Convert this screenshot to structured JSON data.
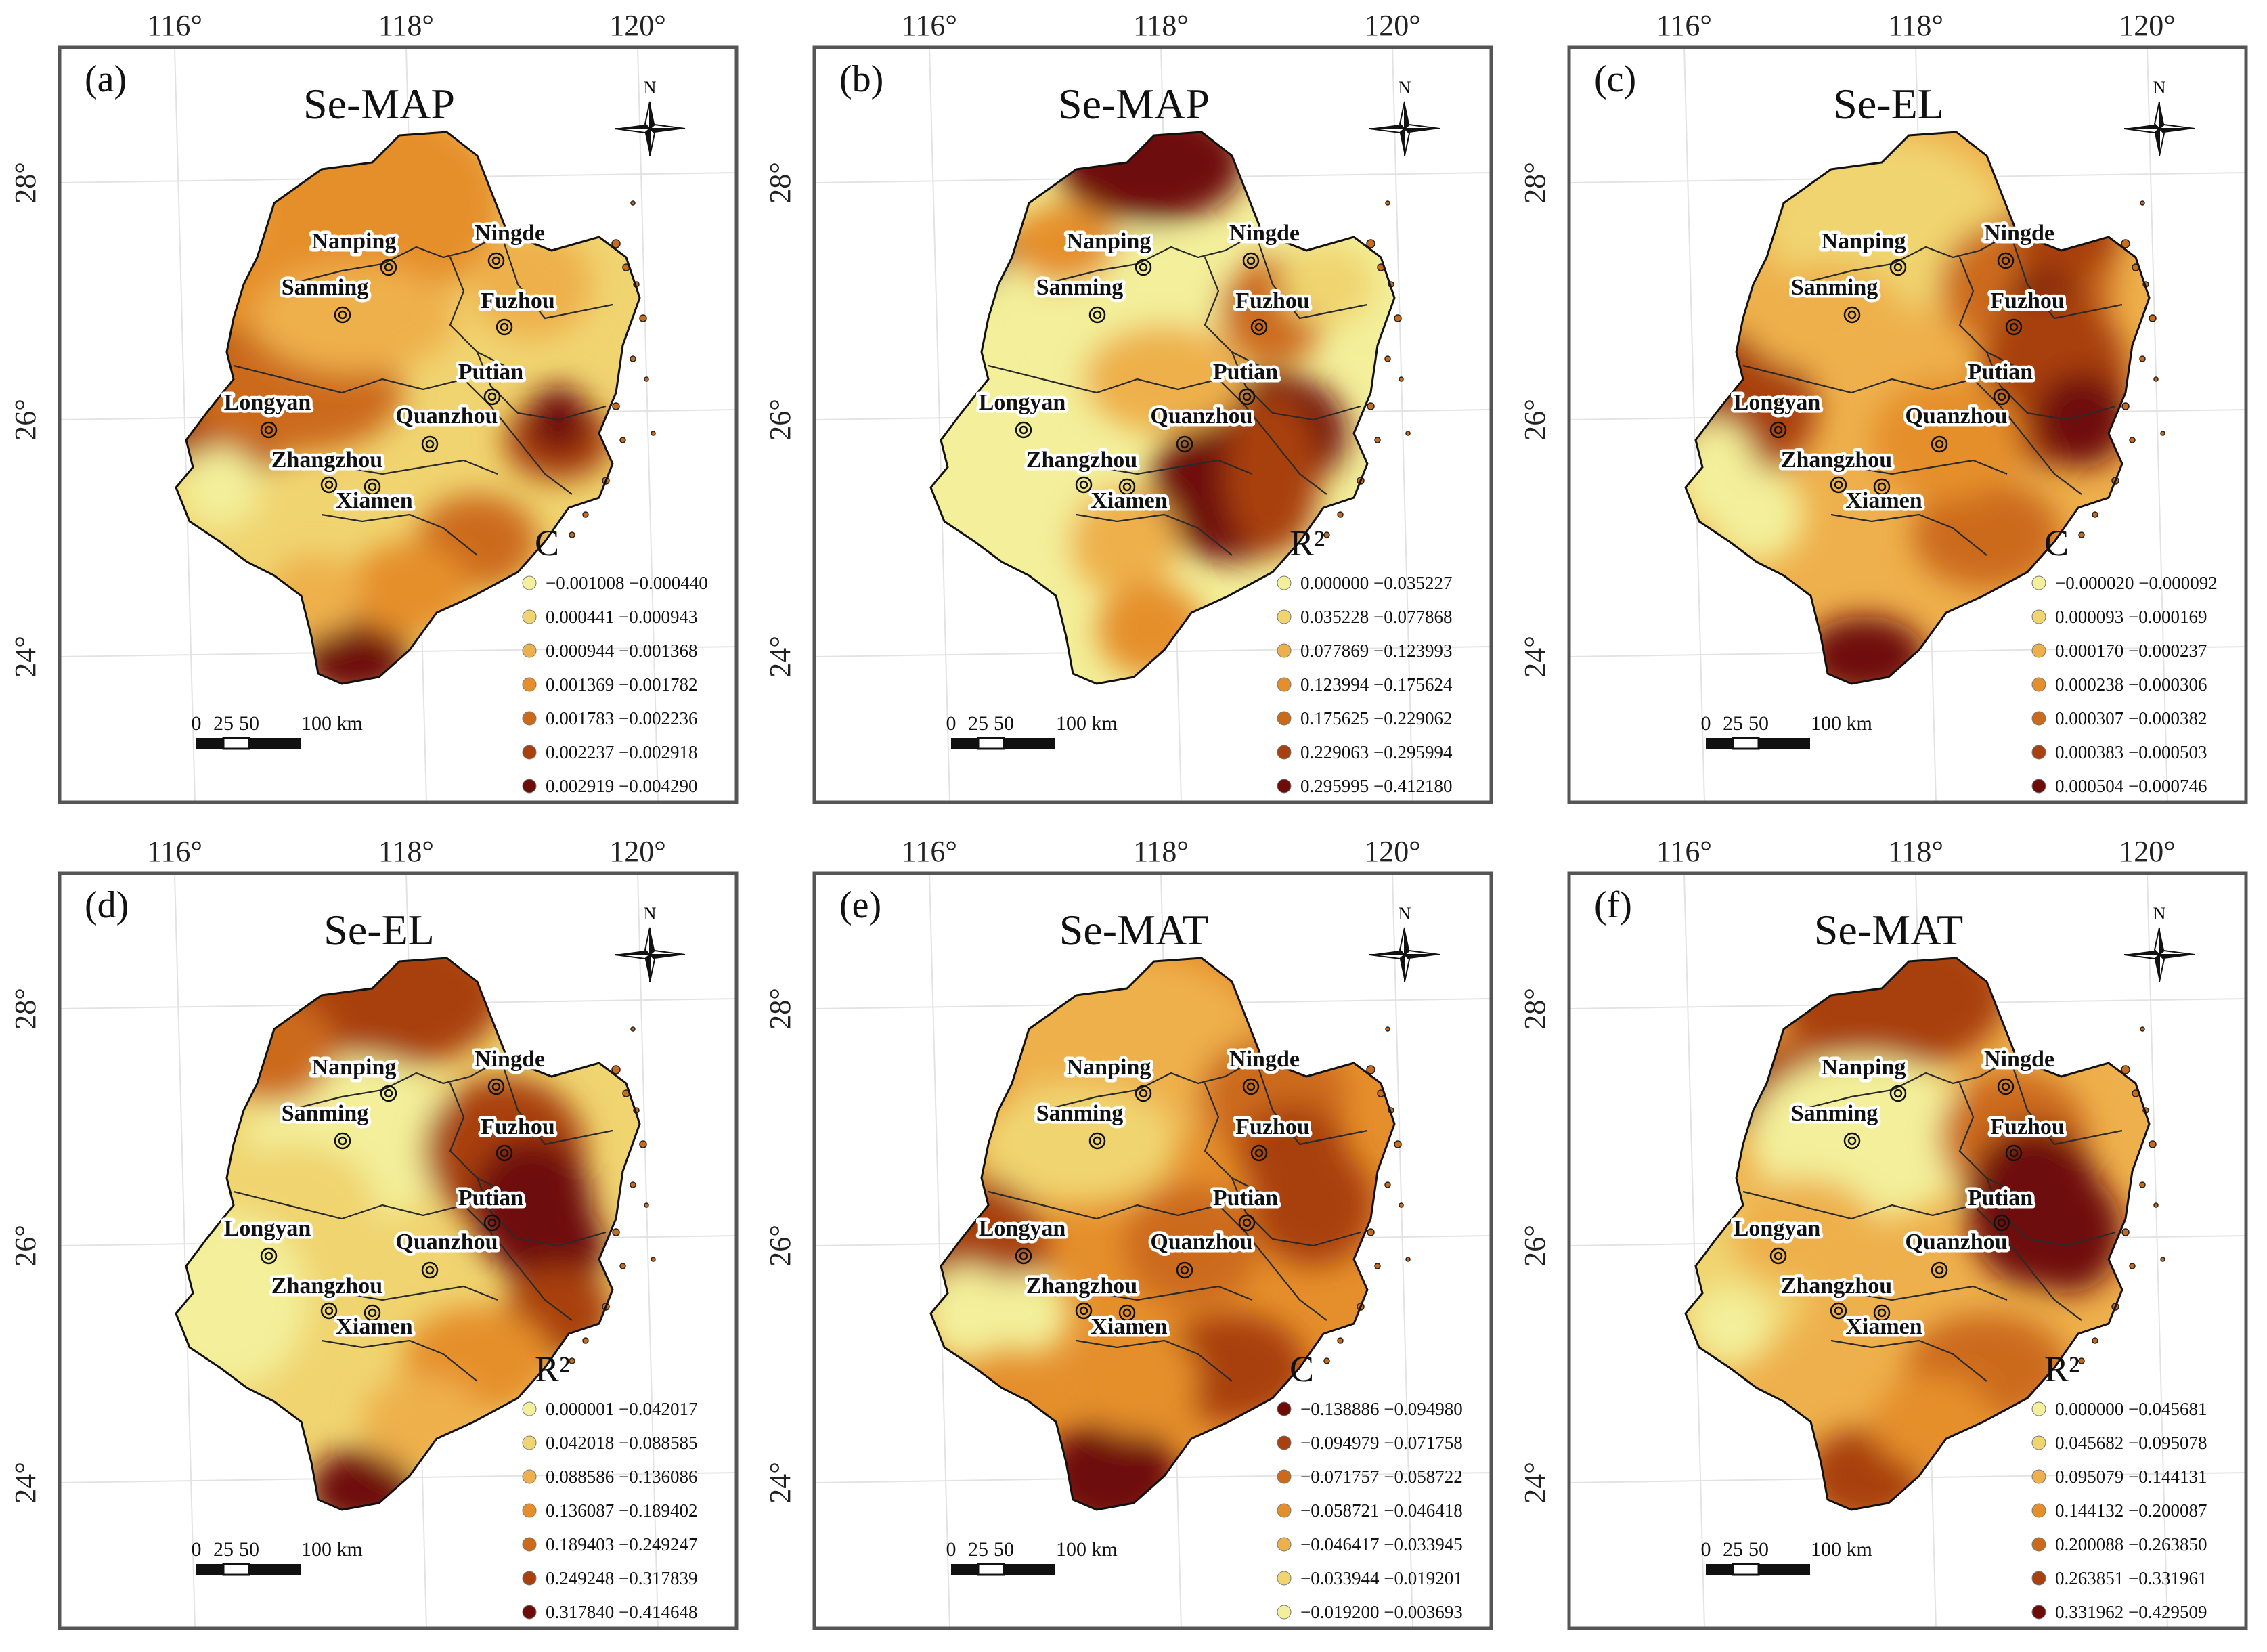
{
  "figure": {
    "lon_ticks": [
      "116°",
      "118°",
      "120°"
    ],
    "lat_ticks": [
      "28°",
      "26°",
      "24°"
    ],
    "north_label": "N",
    "scale": {
      "labels": [
        "0",
        "25",
        "50",
        "100 km"
      ]
    },
    "cities": [
      "Nanping",
      "Ningde",
      "Sanming",
      "Fuzhou",
      "Putian",
      "Longyan",
      "Quanzhou",
      "Zhangzhou",
      "Xiamen"
    ],
    "class_colors": [
      "#f3ef9a",
      "#f0d470",
      "#eeb04c",
      "#e58f2c",
      "#cc6a1c",
      "#a8400f",
      "#6e0d08"
    ]
  },
  "panels": [
    {
      "label": "(a)",
      "title": "Se-MAP",
      "legend_title": "C",
      "legend": [
        "−0.001008 −0.000440",
        "0.000441 −0.000943",
        "0.000944 −0.001368",
        "0.001369 −0.001782",
        "0.001783 −0.002236",
        "0.002237 −0.002918",
        "0.002919 −0.004290"
      ]
    },
    {
      "label": "(b)",
      "title": "Se-MAP",
      "legend_title": "R²",
      "legend": [
        "0.000000 −0.035227",
        "0.035228 −0.077868",
        "0.077869 −0.123993",
        "0.123994 −0.175624",
        "0.175625 −0.229062",
        "0.229063 −0.295994",
        "0.295995 −0.412180"
      ]
    },
    {
      "label": "(c)",
      "title": "Se-EL",
      "legend_title": "C",
      "legend": [
        "−0.000020 −0.000092",
        "0.000093 −0.000169",
        "0.000170 −0.000237",
        "0.000238 −0.000306",
        "0.000307 −0.000382",
        "0.000383 −0.000503",
        "0.000504 −0.000746"
      ]
    },
    {
      "label": "(d)",
      "title": "Se-EL",
      "legend_title": "R²",
      "legend": [
        "0.000001 −0.042017",
        "0.042018 −0.088585",
        "0.088586 −0.136086",
        "0.136087 −0.189402",
        "0.189403 −0.249247",
        "0.249248 −0.317839",
        "0.317840 −0.414648"
      ]
    },
    {
      "label": "(e)",
      "title": "Se-MAT",
      "legend_title": "C",
      "legend": [
        "−0.138886 −0.094980",
        "−0.094979 −0.071758",
        "−0.071757 −0.058722",
        "−0.058721 −0.046418",
        "−0.046417 −0.033945",
        "−0.033944 −0.019201",
        "−0.019200 −0.003693"
      ]
    },
    {
      "label": "(f)",
      "title": "Se-MAT",
      "legend_title": "R²",
      "legend": [
        "0.000000 −0.045681",
        "0.045682 −0.095078",
        "0.095079 −0.144131",
        "0.144132 −0.200087",
        "0.200088 −0.263850",
        "0.263851 −0.331961",
        "0.331962 −0.429509"
      ]
    }
  ]
}
